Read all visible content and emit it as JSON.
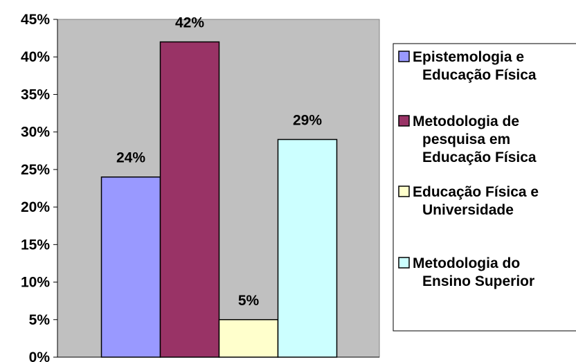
{
  "chart_data": {
    "type": "bar",
    "categories": [
      "Epistemologia e Educação Física",
      "Metodologia de pesquisa em Educação Física",
      "Educação Física e Universidade",
      "Metodologia do Ensino Superior"
    ],
    "series": [
      {
        "values": [
          24,
          42,
          5,
          29
        ],
        "data_labels": [
          "24%",
          "42%",
          "5%",
          "29%"
        ],
        "colors": [
          "#9999ff",
          "#993366",
          "#ffffcc",
          "#ccffff"
        ]
      }
    ],
    "ylim": [
      0,
      45
    ],
    "yticks": [
      0,
      5,
      10,
      15,
      20,
      25,
      30,
      35,
      40,
      45
    ],
    "ytick_labels": [
      "0%",
      "5%",
      "10%",
      "15%",
      "20%",
      "25%",
      "30%",
      "35%",
      "40%",
      "45%"
    ],
    "grid": false,
    "plot_background": "#c0c0c0",
    "legend": {
      "position": "right",
      "entries": [
        {
          "lines": [
            "Epistemologia e",
            "Educação Física"
          ],
          "color": "#9999ff"
        },
        {
          "lines": [
            "Metodologia de",
            "pesquisa em",
            "Educação Física"
          ],
          "color": "#993366"
        },
        {
          "lines": [
            "Educação Física e",
            "Universidade"
          ],
          "color": "#ffffcc"
        },
        {
          "lines": [
            "Metodologia do",
            "Ensino Superior"
          ],
          "color": "#ccffff"
        }
      ]
    }
  }
}
